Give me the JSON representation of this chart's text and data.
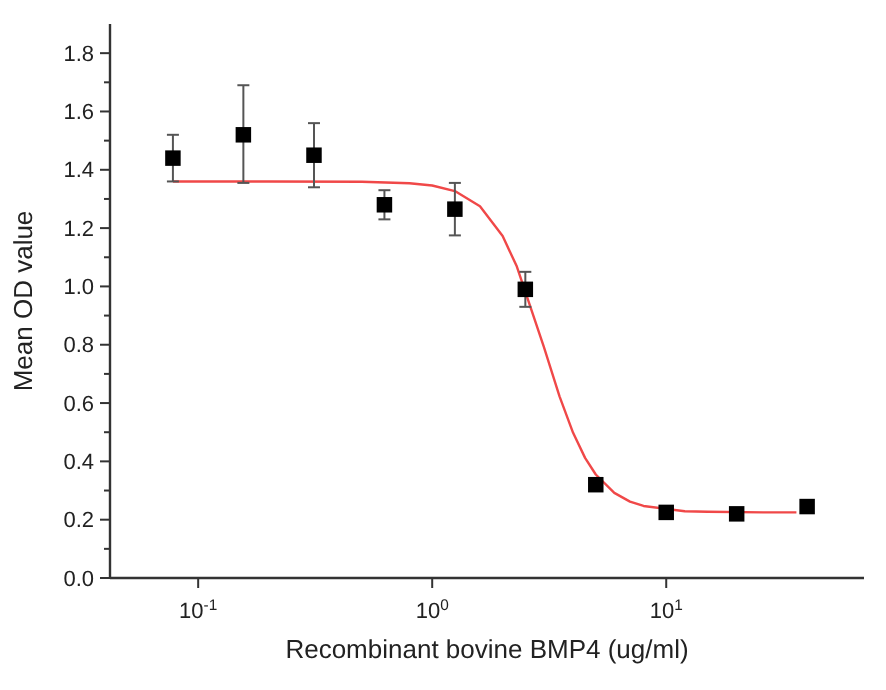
{
  "chart_data": {
    "type": "scatter",
    "xlabel": "Recombinant bovine BMP4 (ug/ml)",
    "ylabel": "Mean OD value",
    "log": "x",
    "grid": false,
    "xlim": [
      0.042,
      70
    ],
    "xticks": [
      {
        "value": 0.1,
        "label": "10$^{-1}$"
      },
      {
        "value": 1,
        "label": "10$^{0}$"
      },
      {
        "value": 10,
        "label": "10$^{1}$"
      }
    ],
    "ylim": [
      0,
      1.9
    ],
    "yticks": [
      {
        "value": 0.0,
        "label": "0.0"
      },
      {
        "value": 0.1,
        "label": null
      },
      {
        "value": 0.2,
        "label": "0.2"
      },
      {
        "value": 0.3,
        "label": null
      },
      {
        "value": 0.4,
        "label": "0.4"
      },
      {
        "value": 0.5,
        "label": null
      },
      {
        "value": 0.6,
        "label": "0.6"
      },
      {
        "value": 0.7,
        "label": null
      },
      {
        "value": 0.8,
        "label": "0.8"
      },
      {
        "value": 0.9,
        "label": null
      },
      {
        "value": 1.0,
        "label": "1.0"
      },
      {
        "value": 1.1,
        "label": null
      },
      {
        "value": 1.2,
        "label": "1.2"
      },
      {
        "value": 1.3,
        "label": null
      },
      {
        "value": 1.4,
        "label": "1.4"
      },
      {
        "value": 1.5,
        "label": null
      },
      {
        "value": 1.6,
        "label": "1.6"
      },
      {
        "value": 1.7,
        "label": null
      },
      {
        "value": 1.8,
        "label": "1.8"
      }
    ],
    "series": [
      {
        "type": "line",
        "color": "#f04848",
        "line_style": "solid",
        "x": [
          0.078,
          0.2,
          0.5,
          0.8,
          1,
          1.25,
          1.6,
          2,
          2.3,
          3,
          3.5,
          4,
          4.5,
          5,
          6,
          7,
          8,
          12,
          15,
          26,
          36
        ],
        "values": [
          1.36,
          1.36,
          1.359,
          1.354,
          1.346,
          1.327,
          1.275,
          1.173,
          1.068,
          0.793,
          0.623,
          0.498,
          0.412,
          0.355,
          0.292,
          0.262,
          0.247,
          0.229,
          0.227,
          0.225,
          0.225
        ]
      },
      {
        "marker": "square",
        "color": "#000000",
        "x": [
          0.078,
          0.156,
          0.3125,
          0.625,
          1.25,
          2.5,
          5,
          10,
          20,
          40
        ],
        "values": [
          1.44,
          1.52,
          1.45,
          1.28,
          1.265,
          0.99,
          0.32,
          0.225,
          0.22,
          0.245
        ],
        "errors": [
          [
            1.36,
            1.52
          ],
          [
            1.355,
            1.69
          ],
          [
            1.34,
            1.56
          ],
          [
            1.23,
            1.33
          ],
          [
            1.175,
            1.355
          ],
          [
            0.93,
            1.05
          ],
          null,
          null,
          null,
          null
        ]
      }
    ]
  }
}
